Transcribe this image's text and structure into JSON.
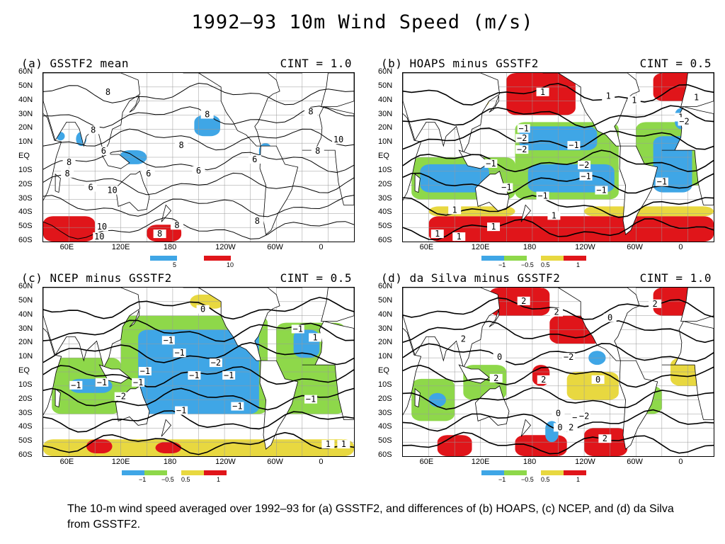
{
  "title": "1992–93 10m Wind Speed (m/s)",
  "caption": "The 10-m wind speed averaged over 1992–93 for (a) GSSTF2, and differences of (b) HOAPS, (c) NCEP, and (d) da Silva from GSSTF2.",
  "colors": {
    "neg_strong": "#3fa6e6",
    "neg_weak": "#8ed84a",
    "pos_weak": "#e8d840",
    "pos_strong": "#e0151a",
    "land_coast": "#000000",
    "contour": "#000000"
  },
  "latitude_ticks": [
    "60N",
    "50N",
    "40N",
    "30N",
    "20N",
    "10N",
    "EQ",
    "10S",
    "20S",
    "30S",
    "40S",
    "50S",
    "60S"
  ],
  "longitude_ticks": [
    "60E",
    "120E",
    "180",
    "120W",
    "60W",
    "0"
  ],
  "chart_data": [
    {
      "type": "heatmap",
      "panel": "a",
      "title": "(a) GSSTF2 mean",
      "cint": "CINT = 1.0",
      "legend": [
        {
          "label": "5",
          "color": "#3fa6e6"
        },
        {
          "label": "10",
          "color": "#e0151a"
        }
      ],
      "contour_labels": [
        "8",
        "8",
        "8",
        "8",
        "6",
        "6",
        "6",
        "6",
        "8",
        "8",
        "6",
        "8",
        "8",
        "10",
        "10",
        "10",
        "10",
        "8",
        "8",
        "8"
      ]
    },
    {
      "type": "heatmap",
      "panel": "b",
      "title": "(b) HOAPS minus GSSTF2",
      "cint": "CINT = 0.5",
      "legend": [
        {
          "label": "−1",
          "color": "#3fa6e6"
        },
        {
          "label": "−0.5",
          "color": "#8ed84a"
        },
        {
          "label": "0.5",
          "color": "#e8d840"
        },
        {
          "label": "1",
          "color": "#e0151a"
        }
      ],
      "contour_labels": [
        "1",
        "1",
        "1",
        "1",
        "1",
        "−1",
        "−2",
        "−2",
        "−1",
        "−1",
        "−2",
        "−1",
        "−1",
        "−2",
        "−1",
        "−1",
        "−1",
        "1",
        "1",
        "1",
        "1",
        "1"
      ]
    },
    {
      "type": "heatmap",
      "panel": "c",
      "title": "(c) NCEP minus GSSTF2",
      "cint": "CINT = 0.5",
      "legend": [
        {
          "label": "−1",
          "color": "#3fa6e6"
        },
        {
          "label": "−0.5",
          "color": "#8ed84a"
        },
        {
          "label": "0.5",
          "color": "#e8d840"
        },
        {
          "label": "1",
          "color": "#e0151a"
        }
      ],
      "contour_labels": [
        "0",
        "−1",
        "−1",
        "−1",
        "−2",
        "−1",
        "−1",
        "−1",
        "−1",
        "−1",
        "−2",
        "−1",
        "−1",
        "−1",
        "−1",
        "1",
        "1",
        "1"
      ]
    },
    {
      "type": "heatmap",
      "panel": "d",
      "title": "(d) da Silva minus GSSTF2",
      "cint": "CINT = 1.0",
      "legend": [
        {
          "label": "−1",
          "color": "#3fa6e6"
        },
        {
          "label": "−0.5",
          "color": "#8ed84a"
        },
        {
          "label": "0.5",
          "color": "#e8d840"
        },
        {
          "label": "1",
          "color": "#e0151a"
        }
      ],
      "contour_labels": [
        "2",
        "2",
        "2",
        "0",
        "2",
        "0",
        "2",
        "−2",
        "−2",
        "2",
        "0",
        "0",
        "2",
        "0",
        "−2",
        "2"
      ]
    }
  ]
}
